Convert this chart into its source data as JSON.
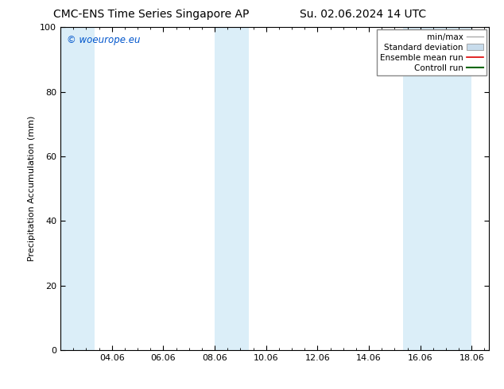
{
  "title_left": "CMC-ENS Time Series Singapore AP",
  "title_right": "Su. 02.06.2024 14 UTC",
  "ylabel": "Precipitation Accumulation (mm)",
  "watermark": "© woeurope.eu",
  "xlim_start": 2.0,
  "xlim_end": 18.67,
  "ylim": [
    0,
    100
  ],
  "yticks": [
    0,
    20,
    40,
    60,
    80,
    100
  ],
  "xtick_labels": [
    "04.06",
    "06.06",
    "08.06",
    "10.06",
    "12.06",
    "14.06",
    "16.06",
    "18.06"
  ],
  "xtick_positions": [
    4,
    6,
    8,
    10,
    12,
    14,
    16,
    18
  ],
  "shaded_bands": [
    {
      "xmin": 2.0,
      "xmax": 3.33,
      "color": "#dbeef8"
    },
    {
      "xmin": 8.0,
      "xmax": 9.33,
      "color": "#dbeef8"
    },
    {
      "xmin": 15.33,
      "xmax": 16.67,
      "color": "#dbeef8"
    },
    {
      "xmin": 16.67,
      "xmax": 18.0,
      "color": "#dbeef8"
    }
  ],
  "legend_entries": [
    {
      "label": "min/max",
      "color": "#aaaaaa",
      "lw": 1.0,
      "style": "solid",
      "type": "line"
    },
    {
      "label": "Standard deviation",
      "color": "#c8dcec",
      "lw": 7,
      "style": "solid",
      "type": "thick"
    },
    {
      "label": "Ensemble mean run",
      "color": "#dd0000",
      "lw": 1.2,
      "style": "solid",
      "type": "line"
    },
    {
      "label": "Controll run",
      "color": "#006600",
      "lw": 1.5,
      "style": "solid",
      "type": "line"
    }
  ],
  "background_color": "#ffffff",
  "plot_bg_color": "#ffffff",
  "title_fontsize": 10,
  "axis_label_fontsize": 8,
  "tick_fontsize": 8,
  "watermark_color": "#0055cc",
  "legend_fontsize": 7.5
}
